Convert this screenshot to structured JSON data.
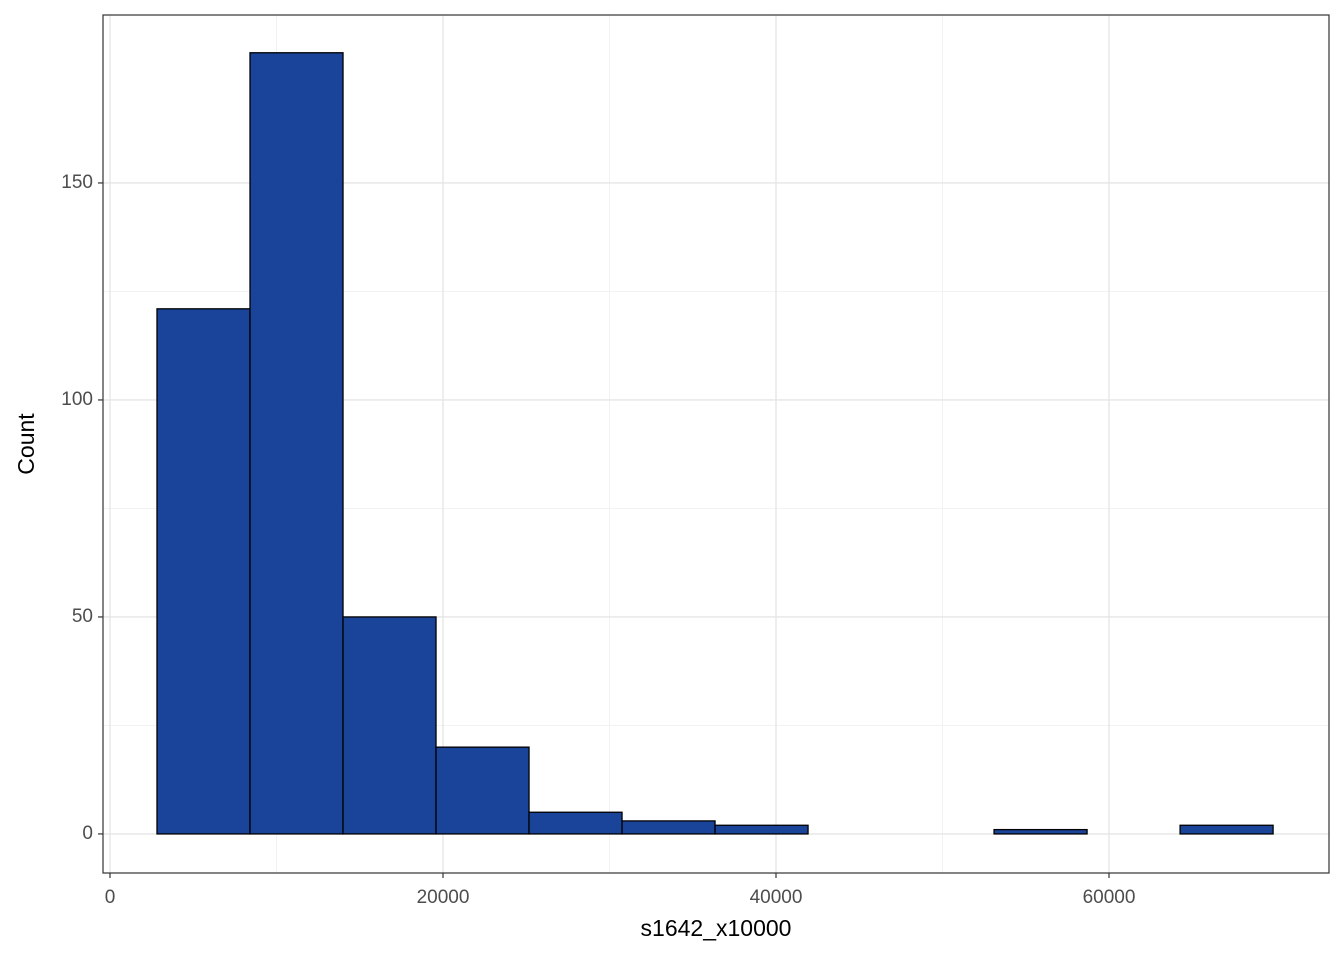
{
  "chart_data": {
    "type": "histogram",
    "x_label": "s1642_x10000",
    "y_label": "Count",
    "bins": [
      2823,
      8409,
      13995,
      19581,
      25167,
      30753,
      36339,
      41925,
      47511,
      53097,
      58683,
      64269,
      69855
    ],
    "values": [
      121,
      180,
      50,
      20,
      5,
      3,
      2,
      0,
      0,
      1,
      0,
      2
    ],
    "color": "#1a4499",
    "edge_color": "#000000",
    "xlim": [
      -420,
      73213
    ],
    "xticks": [
      0,
      20000,
      40000,
      60000
    ],
    "ylim": [
      -9,
      188.7
    ],
    "yticks": [
      0,
      50,
      100,
      150
    ],
    "grid": true
  }
}
